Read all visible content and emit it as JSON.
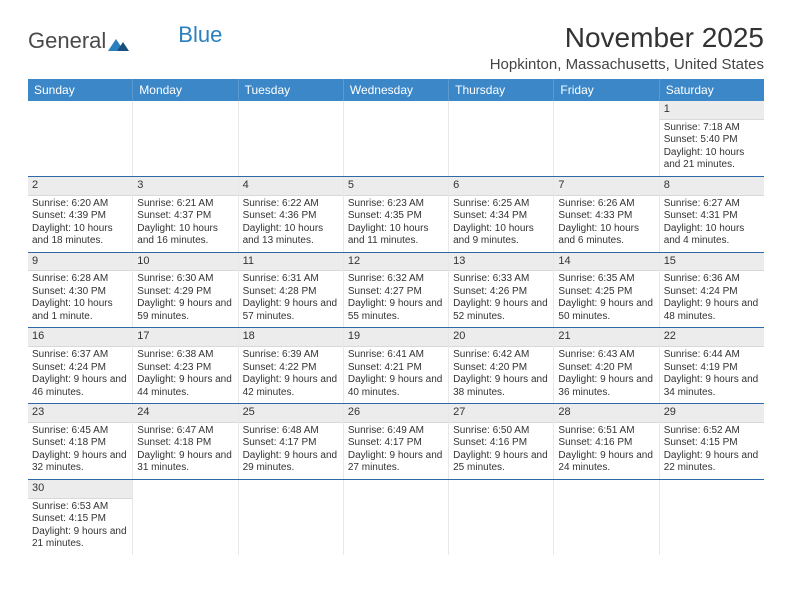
{
  "logo": {
    "text1": "General",
    "text2": "Blue"
  },
  "title": "November 2025",
  "location": "Hopkinton, Massachusetts, United States",
  "colors": {
    "header_bg": "#3b87c8",
    "header_text": "#ffffff",
    "grid_line": "#2a6aa8",
    "daynum_bg": "#ececec"
  },
  "weekdays": [
    "Sunday",
    "Monday",
    "Tuesday",
    "Wednesday",
    "Thursday",
    "Friday",
    "Saturday"
  ],
  "weeks": [
    [
      null,
      null,
      null,
      null,
      null,
      null,
      {
        "n": "1",
        "sunrise": "Sunrise: 7:18 AM",
        "sunset": "Sunset: 5:40 PM",
        "day": "Daylight: 10 hours and 21 minutes."
      }
    ],
    [
      {
        "n": "2",
        "sunrise": "Sunrise: 6:20 AM",
        "sunset": "Sunset: 4:39 PM",
        "day": "Daylight: 10 hours and 18 minutes."
      },
      {
        "n": "3",
        "sunrise": "Sunrise: 6:21 AM",
        "sunset": "Sunset: 4:37 PM",
        "day": "Daylight: 10 hours and 16 minutes."
      },
      {
        "n": "4",
        "sunrise": "Sunrise: 6:22 AM",
        "sunset": "Sunset: 4:36 PM",
        "day": "Daylight: 10 hours and 13 minutes."
      },
      {
        "n": "5",
        "sunrise": "Sunrise: 6:23 AM",
        "sunset": "Sunset: 4:35 PM",
        "day": "Daylight: 10 hours and 11 minutes."
      },
      {
        "n": "6",
        "sunrise": "Sunrise: 6:25 AM",
        "sunset": "Sunset: 4:34 PM",
        "day": "Daylight: 10 hours and 9 minutes."
      },
      {
        "n": "7",
        "sunrise": "Sunrise: 6:26 AM",
        "sunset": "Sunset: 4:33 PM",
        "day": "Daylight: 10 hours and 6 minutes."
      },
      {
        "n": "8",
        "sunrise": "Sunrise: 6:27 AM",
        "sunset": "Sunset: 4:31 PM",
        "day": "Daylight: 10 hours and 4 minutes."
      }
    ],
    [
      {
        "n": "9",
        "sunrise": "Sunrise: 6:28 AM",
        "sunset": "Sunset: 4:30 PM",
        "day": "Daylight: 10 hours and 1 minute."
      },
      {
        "n": "10",
        "sunrise": "Sunrise: 6:30 AM",
        "sunset": "Sunset: 4:29 PM",
        "day": "Daylight: 9 hours and 59 minutes."
      },
      {
        "n": "11",
        "sunrise": "Sunrise: 6:31 AM",
        "sunset": "Sunset: 4:28 PM",
        "day": "Daylight: 9 hours and 57 minutes."
      },
      {
        "n": "12",
        "sunrise": "Sunrise: 6:32 AM",
        "sunset": "Sunset: 4:27 PM",
        "day": "Daylight: 9 hours and 55 minutes."
      },
      {
        "n": "13",
        "sunrise": "Sunrise: 6:33 AM",
        "sunset": "Sunset: 4:26 PM",
        "day": "Daylight: 9 hours and 52 minutes."
      },
      {
        "n": "14",
        "sunrise": "Sunrise: 6:35 AM",
        "sunset": "Sunset: 4:25 PM",
        "day": "Daylight: 9 hours and 50 minutes."
      },
      {
        "n": "15",
        "sunrise": "Sunrise: 6:36 AM",
        "sunset": "Sunset: 4:24 PM",
        "day": "Daylight: 9 hours and 48 minutes."
      }
    ],
    [
      {
        "n": "16",
        "sunrise": "Sunrise: 6:37 AM",
        "sunset": "Sunset: 4:24 PM",
        "day": "Daylight: 9 hours and 46 minutes."
      },
      {
        "n": "17",
        "sunrise": "Sunrise: 6:38 AM",
        "sunset": "Sunset: 4:23 PM",
        "day": "Daylight: 9 hours and 44 minutes."
      },
      {
        "n": "18",
        "sunrise": "Sunrise: 6:39 AM",
        "sunset": "Sunset: 4:22 PM",
        "day": "Daylight: 9 hours and 42 minutes."
      },
      {
        "n": "19",
        "sunrise": "Sunrise: 6:41 AM",
        "sunset": "Sunset: 4:21 PM",
        "day": "Daylight: 9 hours and 40 minutes."
      },
      {
        "n": "20",
        "sunrise": "Sunrise: 6:42 AM",
        "sunset": "Sunset: 4:20 PM",
        "day": "Daylight: 9 hours and 38 minutes."
      },
      {
        "n": "21",
        "sunrise": "Sunrise: 6:43 AM",
        "sunset": "Sunset: 4:20 PM",
        "day": "Daylight: 9 hours and 36 minutes."
      },
      {
        "n": "22",
        "sunrise": "Sunrise: 6:44 AM",
        "sunset": "Sunset: 4:19 PM",
        "day": "Daylight: 9 hours and 34 minutes."
      }
    ],
    [
      {
        "n": "23",
        "sunrise": "Sunrise: 6:45 AM",
        "sunset": "Sunset: 4:18 PM",
        "day": "Daylight: 9 hours and 32 minutes."
      },
      {
        "n": "24",
        "sunrise": "Sunrise: 6:47 AM",
        "sunset": "Sunset: 4:18 PM",
        "day": "Daylight: 9 hours and 31 minutes."
      },
      {
        "n": "25",
        "sunrise": "Sunrise: 6:48 AM",
        "sunset": "Sunset: 4:17 PM",
        "day": "Daylight: 9 hours and 29 minutes."
      },
      {
        "n": "26",
        "sunrise": "Sunrise: 6:49 AM",
        "sunset": "Sunset: 4:17 PM",
        "day": "Daylight: 9 hours and 27 minutes."
      },
      {
        "n": "27",
        "sunrise": "Sunrise: 6:50 AM",
        "sunset": "Sunset: 4:16 PM",
        "day": "Daylight: 9 hours and 25 minutes."
      },
      {
        "n": "28",
        "sunrise": "Sunrise: 6:51 AM",
        "sunset": "Sunset: 4:16 PM",
        "day": "Daylight: 9 hours and 24 minutes."
      },
      {
        "n": "29",
        "sunrise": "Sunrise: 6:52 AM",
        "sunset": "Sunset: 4:15 PM",
        "day": "Daylight: 9 hours and 22 minutes."
      }
    ],
    [
      {
        "n": "30",
        "sunrise": "Sunrise: 6:53 AM",
        "sunset": "Sunset: 4:15 PM",
        "day": "Daylight: 9 hours and 21 minutes."
      },
      null,
      null,
      null,
      null,
      null,
      null
    ]
  ]
}
